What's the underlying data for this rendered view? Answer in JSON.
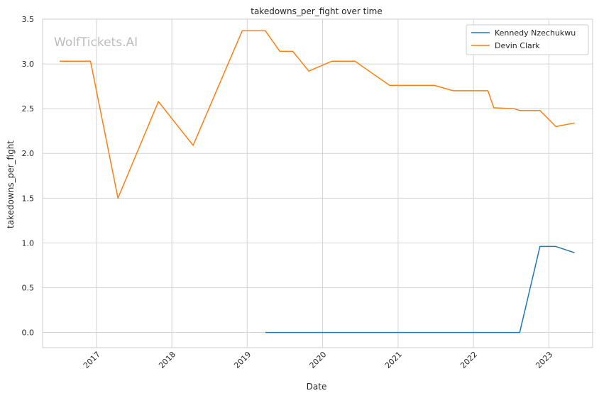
{
  "chart_data": {
    "type": "line",
    "title": "takedowns_per_fight over time",
    "xlabel": "Date",
    "ylabel": "takedowns_per_fight",
    "watermark": "WolfTickets.AI",
    "xlim": [
      "2016-04-15",
      "2023-08-01"
    ],
    "ylim": [
      -0.17,
      3.5
    ],
    "x_ticks": [
      "2017-01-01",
      "2018-01-01",
      "2019-01-01",
      "2020-01-01",
      "2021-01-01",
      "2022-01-01",
      "2023-01-01"
    ],
    "x_tick_labels": [
      "2017",
      "2018",
      "2019",
      "2020",
      "2021",
      "2022",
      "2023"
    ],
    "y_ticks": [
      0.0,
      0.5,
      1.0,
      1.5,
      2.0,
      2.5,
      3.0,
      3.5
    ],
    "y_tick_labels": [
      "0.0",
      "0.5",
      "1.0",
      "1.5",
      "2.0",
      "2.5",
      "3.0",
      "3.5"
    ],
    "grid": true,
    "legend_position": "top-right",
    "series": [
      {
        "name": "Kennedy Nzechukwu",
        "color": "#1f77b4",
        "points": [
          {
            "x": "2019-03-30",
            "y": 0.0
          },
          {
            "x": "2022-08-13",
            "y": 0.0
          },
          {
            "x": "2022-11-19",
            "y": 0.96
          },
          {
            "x": "2023-02-04",
            "y": 0.96
          },
          {
            "x": "2023-05-06",
            "y": 0.89
          }
        ]
      },
      {
        "name": "Devin Clark",
        "color": "#ff7f0e",
        "points": [
          {
            "x": "2016-07-07",
            "y": 3.03
          },
          {
            "x": "2016-12-03",
            "y": 3.03
          },
          {
            "x": "2017-04-15",
            "y": 1.5
          },
          {
            "x": "2017-10-28",
            "y": 2.58
          },
          {
            "x": "2018-04-14",
            "y": 2.09
          },
          {
            "x": "2018-12-08",
            "y": 3.37
          },
          {
            "x": "2019-03-30",
            "y": 3.37
          },
          {
            "x": "2019-06-08",
            "y": 3.14
          },
          {
            "x": "2019-08-10",
            "y": 3.14
          },
          {
            "x": "2019-10-26",
            "y": 2.92
          },
          {
            "x": "2020-02-15",
            "y": 3.03
          },
          {
            "x": "2020-06-06",
            "y": 3.03
          },
          {
            "x": "2020-11-21",
            "y": 2.76
          },
          {
            "x": "2021-06-26",
            "y": 2.76
          },
          {
            "x": "2021-09-25",
            "y": 2.7
          },
          {
            "x": "2022-03-12",
            "y": 2.7
          },
          {
            "x": "2022-04-09",
            "y": 2.51
          },
          {
            "x": "2022-07-16",
            "y": 2.5
          },
          {
            "x": "2022-08-13",
            "y": 2.48
          },
          {
            "x": "2022-11-19",
            "y": 2.48
          },
          {
            "x": "2023-02-04",
            "y": 2.3
          },
          {
            "x": "2023-05-06",
            "y": 2.34
          }
        ]
      }
    ]
  }
}
